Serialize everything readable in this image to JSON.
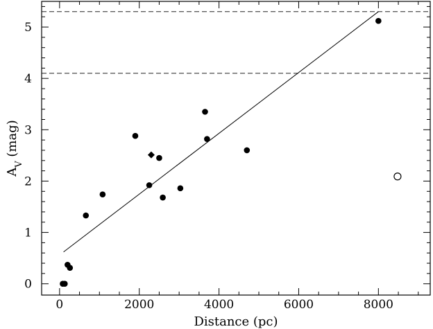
{
  "chart_data": {
    "type": "scatter",
    "title": "",
    "xlabel": "Distance (pc)",
    "ylabel": {
      "main": "A",
      "subscript": "V",
      "rest": " (mag)"
    },
    "xlim": [
      -450,
      9300
    ],
    "ylim": [
      -0.22,
      5.5
    ],
    "xticks": [
      0,
      2000,
      4000,
      6000,
      8000
    ],
    "yticks": [
      0,
      1,
      2,
      3,
      4,
      5
    ],
    "xtick_labels": [
      "0",
      "2000",
      "4000",
      "6000",
      "8000"
    ],
    "ytick_labels": [
      "0",
      "1",
      "2",
      "3",
      "4",
      "5"
    ],
    "grid": false,
    "series": [
      {
        "marker": "filled-circle",
        "points": [
          [
            80,
            0.0
          ],
          [
            130,
            0.0
          ],
          [
            200,
            0.37
          ],
          [
            260,
            0.31
          ],
          [
            660,
            1.33
          ],
          [
            1080,
            1.74
          ],
          [
            1900,
            2.88
          ],
          [
            2250,
            1.92
          ],
          [
            2500,
            2.45
          ],
          [
            2590,
            1.68
          ],
          [
            3030,
            1.86
          ],
          [
            3650,
            3.35
          ],
          [
            3700,
            2.82
          ],
          [
            4700,
            2.6
          ],
          [
            8000,
            5.12
          ]
        ]
      },
      {
        "marker": "filled-diamond",
        "points": [
          [
            2300,
            2.51
          ]
        ]
      },
      {
        "marker": "open-circle",
        "points": [
          [
            8480,
            2.09
          ]
        ]
      }
    ],
    "fit_line": {
      "x": [
        100,
        8000
      ],
      "y": [
        0.62,
        5.3
      ]
    },
    "reference_lines": [
      {
        "y": 5.3,
        "style": "dashed"
      },
      {
        "y": 4.1,
        "style": "dashed"
      }
    ]
  }
}
